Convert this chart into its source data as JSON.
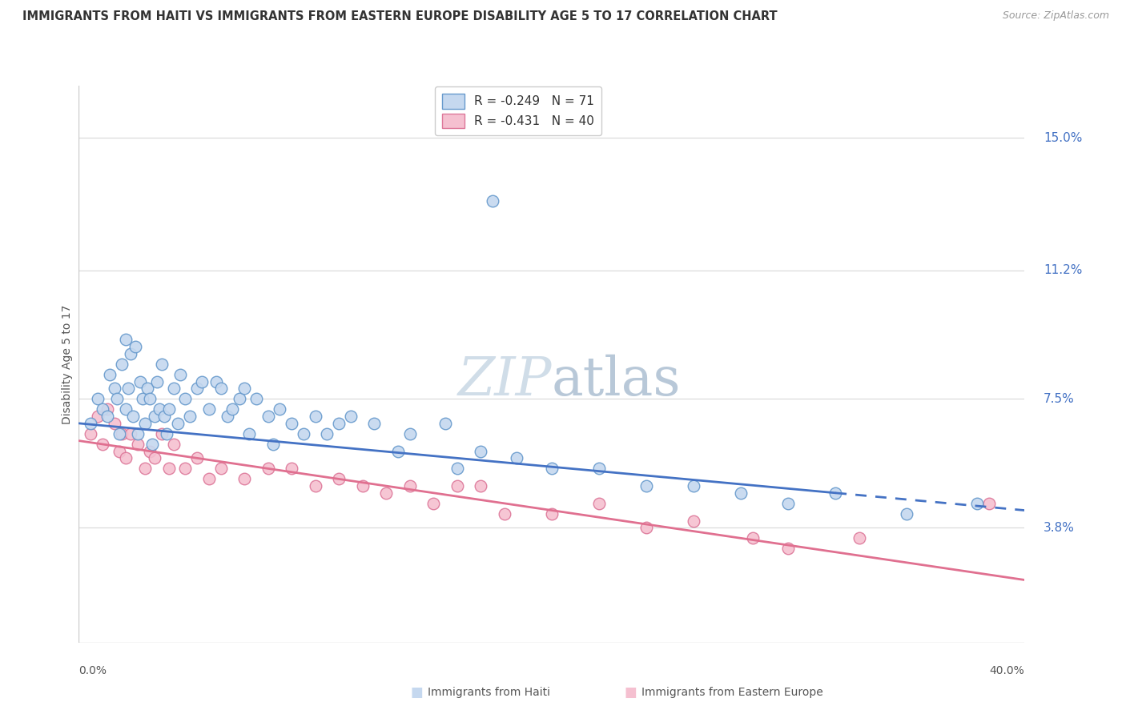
{
  "title": "IMMIGRANTS FROM HAITI VS IMMIGRANTS FROM EASTERN EUROPE DISABILITY AGE 5 TO 17 CORRELATION CHART",
  "source": "Source: ZipAtlas.com",
  "ylabel": "Disability Age 5 to 17",
  "y_ticks": [
    3.8,
    7.5,
    11.2,
    15.0
  ],
  "y_tick_labels": [
    "3.8%",
    "7.5%",
    "11.2%",
    "15.0%"
  ],
  "xlim": [
    0.0,
    40.0
  ],
  "ylim": [
    0.5,
    16.5
  ],
  "color_haiti_fill": "#c5d8ef",
  "color_haiti_edge": "#6699cc",
  "color_eastern_fill": "#f5c0d0",
  "color_eastern_edge": "#dd7799",
  "color_haiti_line": "#4472c4",
  "color_eastern_line": "#e07090",
  "grid_color": "#d8d8d8",
  "background_color": "#ffffff",
  "watermark_text": "ZIPatlas",
  "watermark_color": "#d0dde8",
  "haiti_R": "-0.249",
  "haiti_N": "71",
  "eastern_R": "-0.431",
  "eastern_N": "40",
  "haiti_line_x0": 0.0,
  "haiti_line_y0": 6.8,
  "haiti_line_x1": 40.0,
  "haiti_line_y1": 4.3,
  "haiti_solid_end": 32.0,
  "eastern_line_x0": 0.0,
  "eastern_line_y0": 6.3,
  "eastern_line_x1": 40.0,
  "eastern_line_y1": 2.3,
  "haiti_scatter_x": [
    0.5,
    0.8,
    1.0,
    1.2,
    1.3,
    1.5,
    1.6,
    1.7,
    1.8,
    2.0,
    2.0,
    2.1,
    2.2,
    2.3,
    2.4,
    2.5,
    2.6,
    2.7,
    2.8,
    2.9,
    3.0,
    3.1,
    3.2,
    3.3,
    3.4,
    3.5,
    3.6,
    3.7,
    3.8,
    4.0,
    4.2,
    4.3,
    4.5,
    4.7,
    5.0,
    5.2,
    5.5,
    5.8,
    6.0,
    6.3,
    6.5,
    6.8,
    7.0,
    7.2,
    7.5,
    8.0,
    8.2,
    8.5,
    9.0,
    9.5,
    10.0,
    10.5,
    11.0,
    11.5,
    12.5,
    13.5,
    14.0,
    15.5,
    16.0,
    17.0,
    18.5,
    20.0,
    22.0,
    24.0,
    26.0,
    28.0,
    30.0,
    32.0,
    35.0,
    38.0,
    17.5
  ],
  "haiti_scatter_y": [
    6.8,
    7.5,
    7.2,
    7.0,
    8.2,
    7.8,
    7.5,
    6.5,
    8.5,
    7.2,
    9.2,
    7.8,
    8.8,
    7.0,
    9.0,
    6.5,
    8.0,
    7.5,
    6.8,
    7.8,
    7.5,
    6.2,
    7.0,
    8.0,
    7.2,
    8.5,
    7.0,
    6.5,
    7.2,
    7.8,
    6.8,
    8.2,
    7.5,
    7.0,
    7.8,
    8.0,
    7.2,
    8.0,
    7.8,
    7.0,
    7.2,
    7.5,
    7.8,
    6.5,
    7.5,
    7.0,
    6.2,
    7.2,
    6.8,
    6.5,
    7.0,
    6.5,
    6.8,
    7.0,
    6.8,
    6.0,
    6.5,
    6.8,
    5.5,
    6.0,
    5.8,
    5.5,
    5.5,
    5.0,
    5.0,
    4.8,
    4.5,
    4.8,
    4.2,
    4.5,
    13.2
  ],
  "eastern_scatter_x": [
    0.5,
    0.8,
    1.0,
    1.2,
    1.5,
    1.7,
    1.8,
    2.0,
    2.2,
    2.5,
    2.8,
    3.0,
    3.2,
    3.5,
    3.8,
    4.0,
    4.5,
    5.0,
    5.5,
    6.0,
    7.0,
    8.0,
    9.0,
    10.0,
    11.0,
    12.0,
    13.0,
    14.0,
    15.0,
    16.0,
    17.0,
    18.0,
    20.0,
    22.0,
    24.0,
    26.0,
    28.5,
    30.0,
    33.0,
    38.5
  ],
  "eastern_scatter_y": [
    6.5,
    7.0,
    6.2,
    7.2,
    6.8,
    6.0,
    6.5,
    5.8,
    6.5,
    6.2,
    5.5,
    6.0,
    5.8,
    6.5,
    5.5,
    6.2,
    5.5,
    5.8,
    5.2,
    5.5,
    5.2,
    5.5,
    5.5,
    5.0,
    5.2,
    5.0,
    4.8,
    5.0,
    4.5,
    5.0,
    5.0,
    4.2,
    4.2,
    4.5,
    3.8,
    4.0,
    3.5,
    3.2,
    3.5,
    4.5
  ]
}
